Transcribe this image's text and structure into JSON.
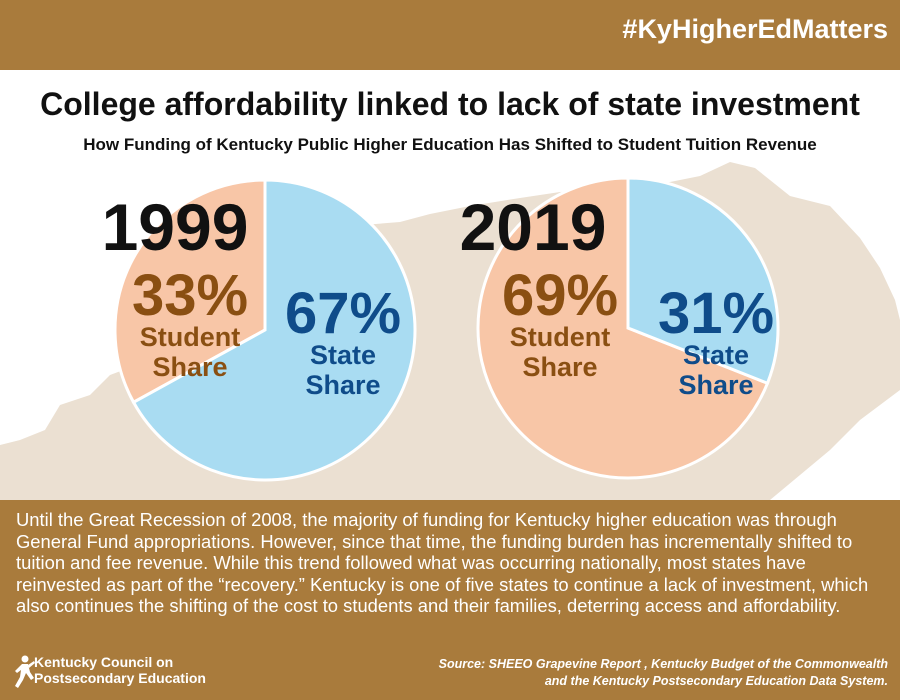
{
  "header": {
    "hashtag": "#KyHigherEdMatters"
  },
  "title": "College affordability linked to lack of state investment",
  "subtitle": "How Funding of Kentucky Public Higher Education Has Shifted to Student Tuition Revenue",
  "colors": {
    "brand": "#a97b3c",
    "student": "#f8c6a7",
    "state": "#a9dcf2",
    "student_text": "#8a4f12",
    "state_text": "#0f4c8a",
    "map": "#ebe0d2"
  },
  "chart_data": [
    {
      "type": "pie",
      "title": "1999",
      "slices": [
        {
          "category": "Student Share",
          "value": 33,
          "label": "33%",
          "name_line1": "Student",
          "name_line2": "Share"
        },
        {
          "category": "State Share",
          "value": 67,
          "label": "67%",
          "name_line1": "State",
          "name_line2": "Share"
        }
      ]
    },
    {
      "type": "pie",
      "title": "2019",
      "slices": [
        {
          "category": "Student Share",
          "value": 69,
          "label": "69%",
          "name_line1": "Student",
          "name_line2": "Share"
        },
        {
          "category": "State Share",
          "value": 31,
          "label": "31%",
          "name_line1": "State",
          "name_line2": "Share"
        }
      ]
    }
  ],
  "body": {
    "paragraph": "Until the Great Recession of 2008, the majority of funding for Kentucky higher education was through General Fund appropriations. However, since that time, the funding burden has incrementally shifted to tuition and fee revenue. While this trend followed what was occurring nationally, most states have reinvested as part of the “recovery.” Kentucky is one of five states to continue a lack of investment, which also continues the shifting of the cost to students and their families, deterring access and affordability."
  },
  "footer": {
    "logo_line1": "Kentucky Council on",
    "logo_line2": "Postsecondary Education",
    "source_line1": "Source: SHEEO Grapevine Report , Kentucky Budget of the Commonwealth",
    "source_line2": "and the Kentucky Postsecondary Education Data System."
  }
}
